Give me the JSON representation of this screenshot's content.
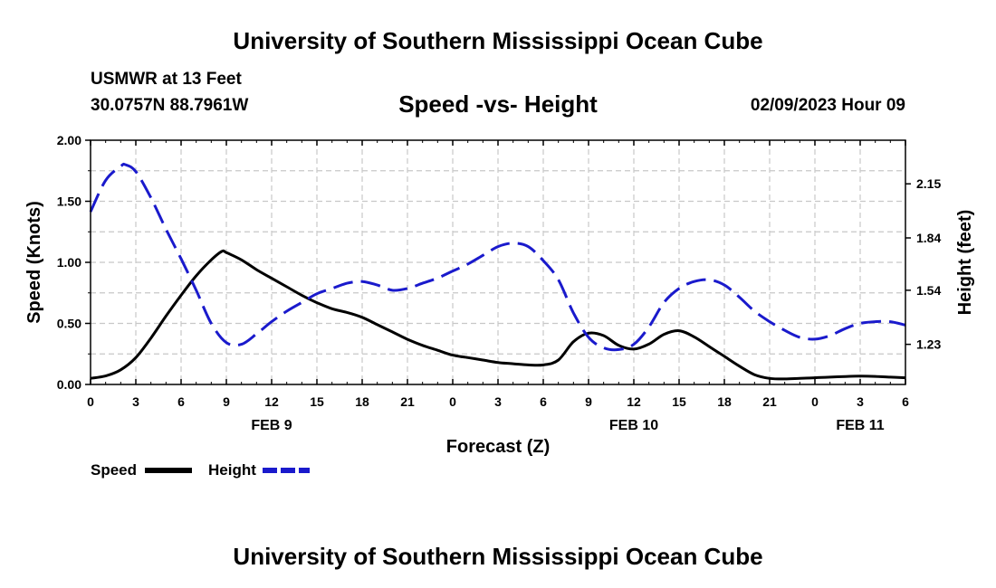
{
  "header": {
    "title": "University of Southern Mississippi Ocean Cube",
    "station": "USMWR at 13 Feet",
    "coords": "30.0757N  88.7961W",
    "subtitle": "Speed -vs- Height",
    "datetime": "02/09/2023 Hour 09",
    "footer_title": "University of Southern Mississippi Ocean Cube"
  },
  "chart_data": {
    "type": "line",
    "title": "Speed -vs- Height",
    "xlabel": "Forecast (Z)",
    "ylabel": "Speed (Knots)",
    "y2label": "Height (feet)",
    "x_range": [
      0,
      54
    ],
    "ylim": [
      0,
      2.0
    ],
    "y2lim": [
      1.0,
      2.4
    ],
    "x_tick_labels": [
      "0",
      "3",
      "6",
      "9",
      "12",
      "15",
      "18",
      "21",
      "0",
      "3",
      "6",
      "9",
      "12",
      "15",
      "18",
      "21",
      "0",
      "3",
      "6"
    ],
    "date_labels": [
      {
        "label": "FEB 9",
        "at_hour": 12
      },
      {
        "label": "FEB 10",
        "at_hour": 36
      },
      {
        "label": "FEB 11",
        "at_hour": 51
      }
    ],
    "y_ticks": [
      "0.00",
      "0.50",
      "1.00",
      "1.50",
      "2.00"
    ],
    "y_tick_values": [
      0,
      0.5,
      1.0,
      1.5,
      2.0
    ],
    "y2_ticks": [
      "1.23",
      "1.54",
      "1.84",
      "2.15"
    ],
    "y2_tick_values": [
      1.23,
      1.54,
      1.84,
      2.15
    ],
    "grid": true,
    "series": [
      {
        "name": "Speed",
        "axis": "left",
        "color": "#000000",
        "style": "solid",
        "x": [
          0,
          1,
          2,
          3,
          4,
          5,
          6,
          7,
          8,
          8.7,
          9,
          10,
          11,
          12,
          13,
          14,
          15,
          16,
          17,
          18,
          19,
          20,
          21,
          22,
          23,
          24,
          25,
          26,
          27,
          28,
          29,
          30,
          31,
          32,
          33,
          34,
          35,
          36,
          37,
          38,
          39,
          40,
          41,
          42,
          43,
          44,
          45,
          46,
          47,
          48,
          49,
          50,
          51,
          52,
          53,
          54
        ],
        "values": [
          0.05,
          0.07,
          0.12,
          0.22,
          0.38,
          0.56,
          0.73,
          0.89,
          1.02,
          1.09,
          1.08,
          1.02,
          0.94,
          0.87,
          0.8,
          0.73,
          0.67,
          0.62,
          0.59,
          0.55,
          0.49,
          0.43,
          0.37,
          0.32,
          0.28,
          0.24,
          0.22,
          0.2,
          0.18,
          0.17,
          0.16,
          0.16,
          0.2,
          0.35,
          0.42,
          0.4,
          0.32,
          0.29,
          0.33,
          0.41,
          0.44,
          0.39,
          0.31,
          0.23,
          0.15,
          0.08,
          0.05,
          0.045,
          0.05,
          0.055,
          0.06,
          0.065,
          0.068,
          0.066,
          0.06,
          0.055
        ]
      },
      {
        "name": "Height",
        "axis": "right",
        "color": "#1a1acc",
        "style": "dashed",
        "x": [
          0,
          1,
          2,
          2.3,
          3,
          4,
          5,
          6,
          7,
          8,
          9,
          10,
          11,
          12,
          13,
          14,
          15,
          16,
          17,
          18,
          19,
          20,
          21,
          22,
          23,
          24,
          25,
          26,
          27,
          28,
          29,
          30,
          31,
          32,
          33,
          34,
          35,
          36,
          37,
          38,
          39,
          40,
          41,
          42,
          43,
          44,
          45,
          46,
          47,
          48,
          49,
          50,
          51,
          52,
          53,
          54
        ],
        "values": [
          1.99,
          2.17,
          2.25,
          2.26,
          2.22,
          2.07,
          1.89,
          1.72,
          1.54,
          1.35,
          1.24,
          1.23,
          1.29,
          1.36,
          1.42,
          1.47,
          1.52,
          1.55,
          1.58,
          1.59,
          1.57,
          1.54,
          1.55,
          1.58,
          1.61,
          1.65,
          1.69,
          1.74,
          1.79,
          1.81,
          1.79,
          1.71,
          1.6,
          1.41,
          1.27,
          1.21,
          1.2,
          1.23,
          1.33,
          1.47,
          1.55,
          1.59,
          1.6,
          1.57,
          1.5,
          1.42,
          1.36,
          1.31,
          1.27,
          1.26,
          1.28,
          1.32,
          1.35,
          1.36,
          1.36,
          1.34
        ]
      }
    ],
    "legend": {
      "placement": "bottom-left",
      "entries": [
        "Speed",
        "Height"
      ]
    }
  }
}
